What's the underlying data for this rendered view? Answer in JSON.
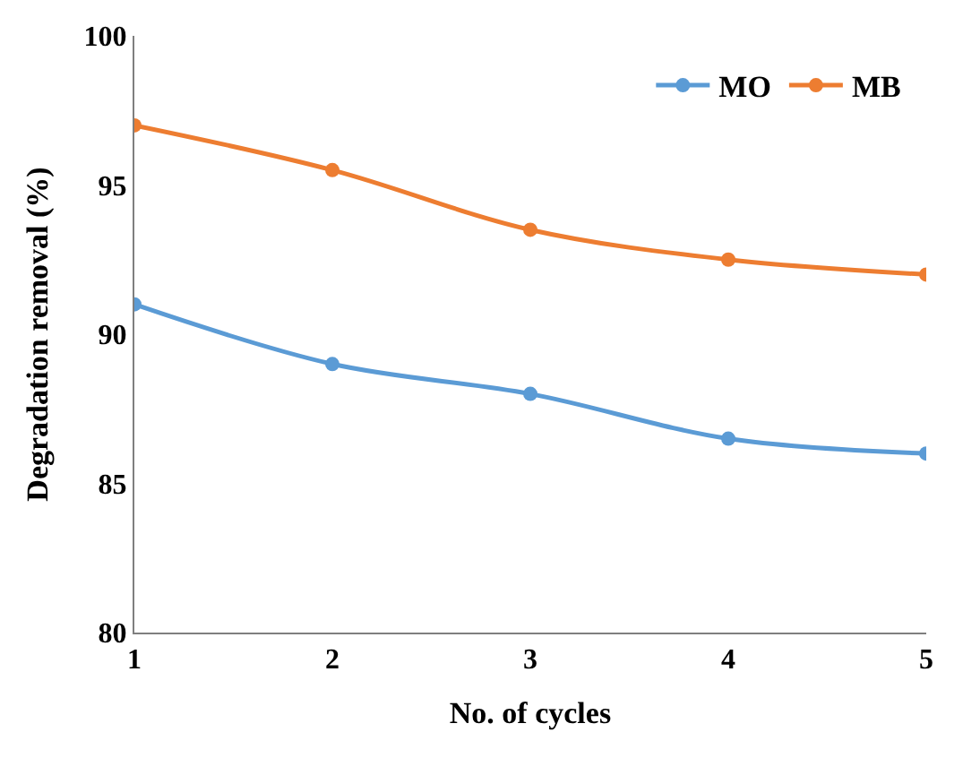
{
  "chart_data": {
    "type": "line",
    "xlabel": "No. of cycles",
    "ylabel": "Degradation removal (%)",
    "x": [
      1,
      2,
      3,
      4,
      5
    ],
    "xlim": [
      1,
      5
    ],
    "xticks": [
      1,
      2,
      3,
      4,
      5
    ],
    "ylim": [
      80,
      100
    ],
    "yticks": [
      80,
      85,
      90,
      95,
      100
    ],
    "series": [
      {
        "name": "MO",
        "color": "#5b9bd5",
        "values": [
          91,
          89,
          88,
          86.5,
          86
        ]
      },
      {
        "name": "MB",
        "color": "#ed7d31",
        "values": [
          97,
          95.5,
          93.5,
          92.5,
          92
        ]
      }
    ],
    "marker": "circle",
    "line_style": "solid",
    "legend": "top right"
  }
}
